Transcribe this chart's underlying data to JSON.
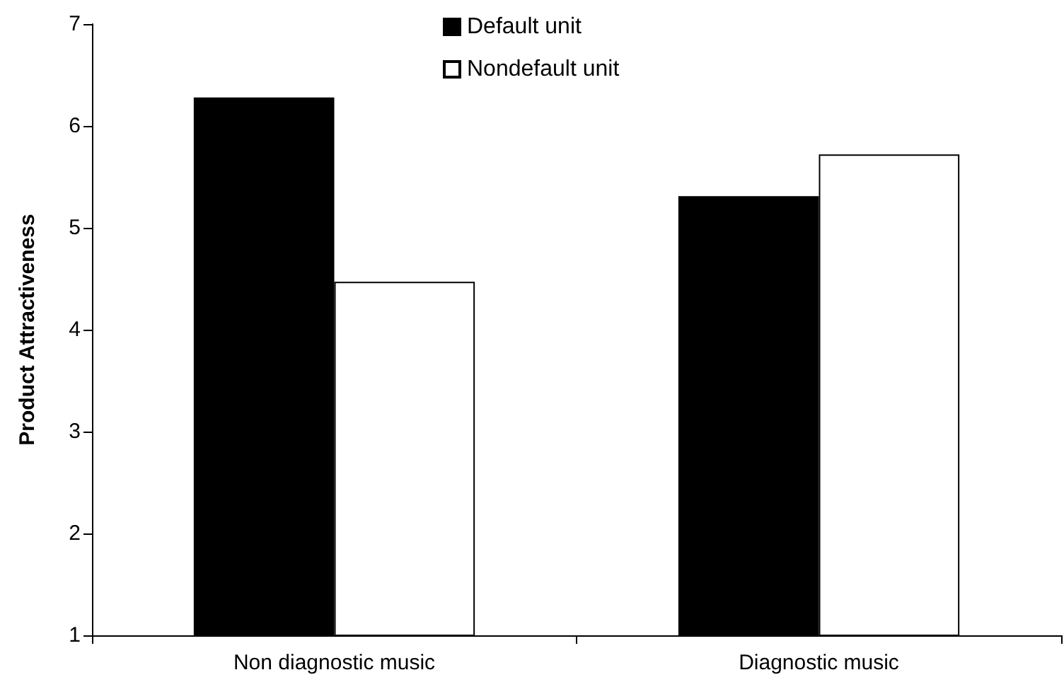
{
  "chart_data": {
    "type": "bar",
    "ylabel": "Product Attractiveness",
    "categories": [
      "Non diagnostic music",
      "Diagnostic music"
    ],
    "series": [
      {
        "name": "Default unit",
        "color": "#000000",
        "values": [
          6.28,
          5.31
        ]
      },
      {
        "name": "Nondefault unit",
        "color": "#ffffff",
        "values": [
          4.47,
          5.72
        ]
      }
    ],
    "ylim": [
      1,
      7
    ],
    "yticks": [
      1,
      2,
      3,
      4,
      5,
      6,
      7
    ],
    "grid": false,
    "legend": "top"
  }
}
